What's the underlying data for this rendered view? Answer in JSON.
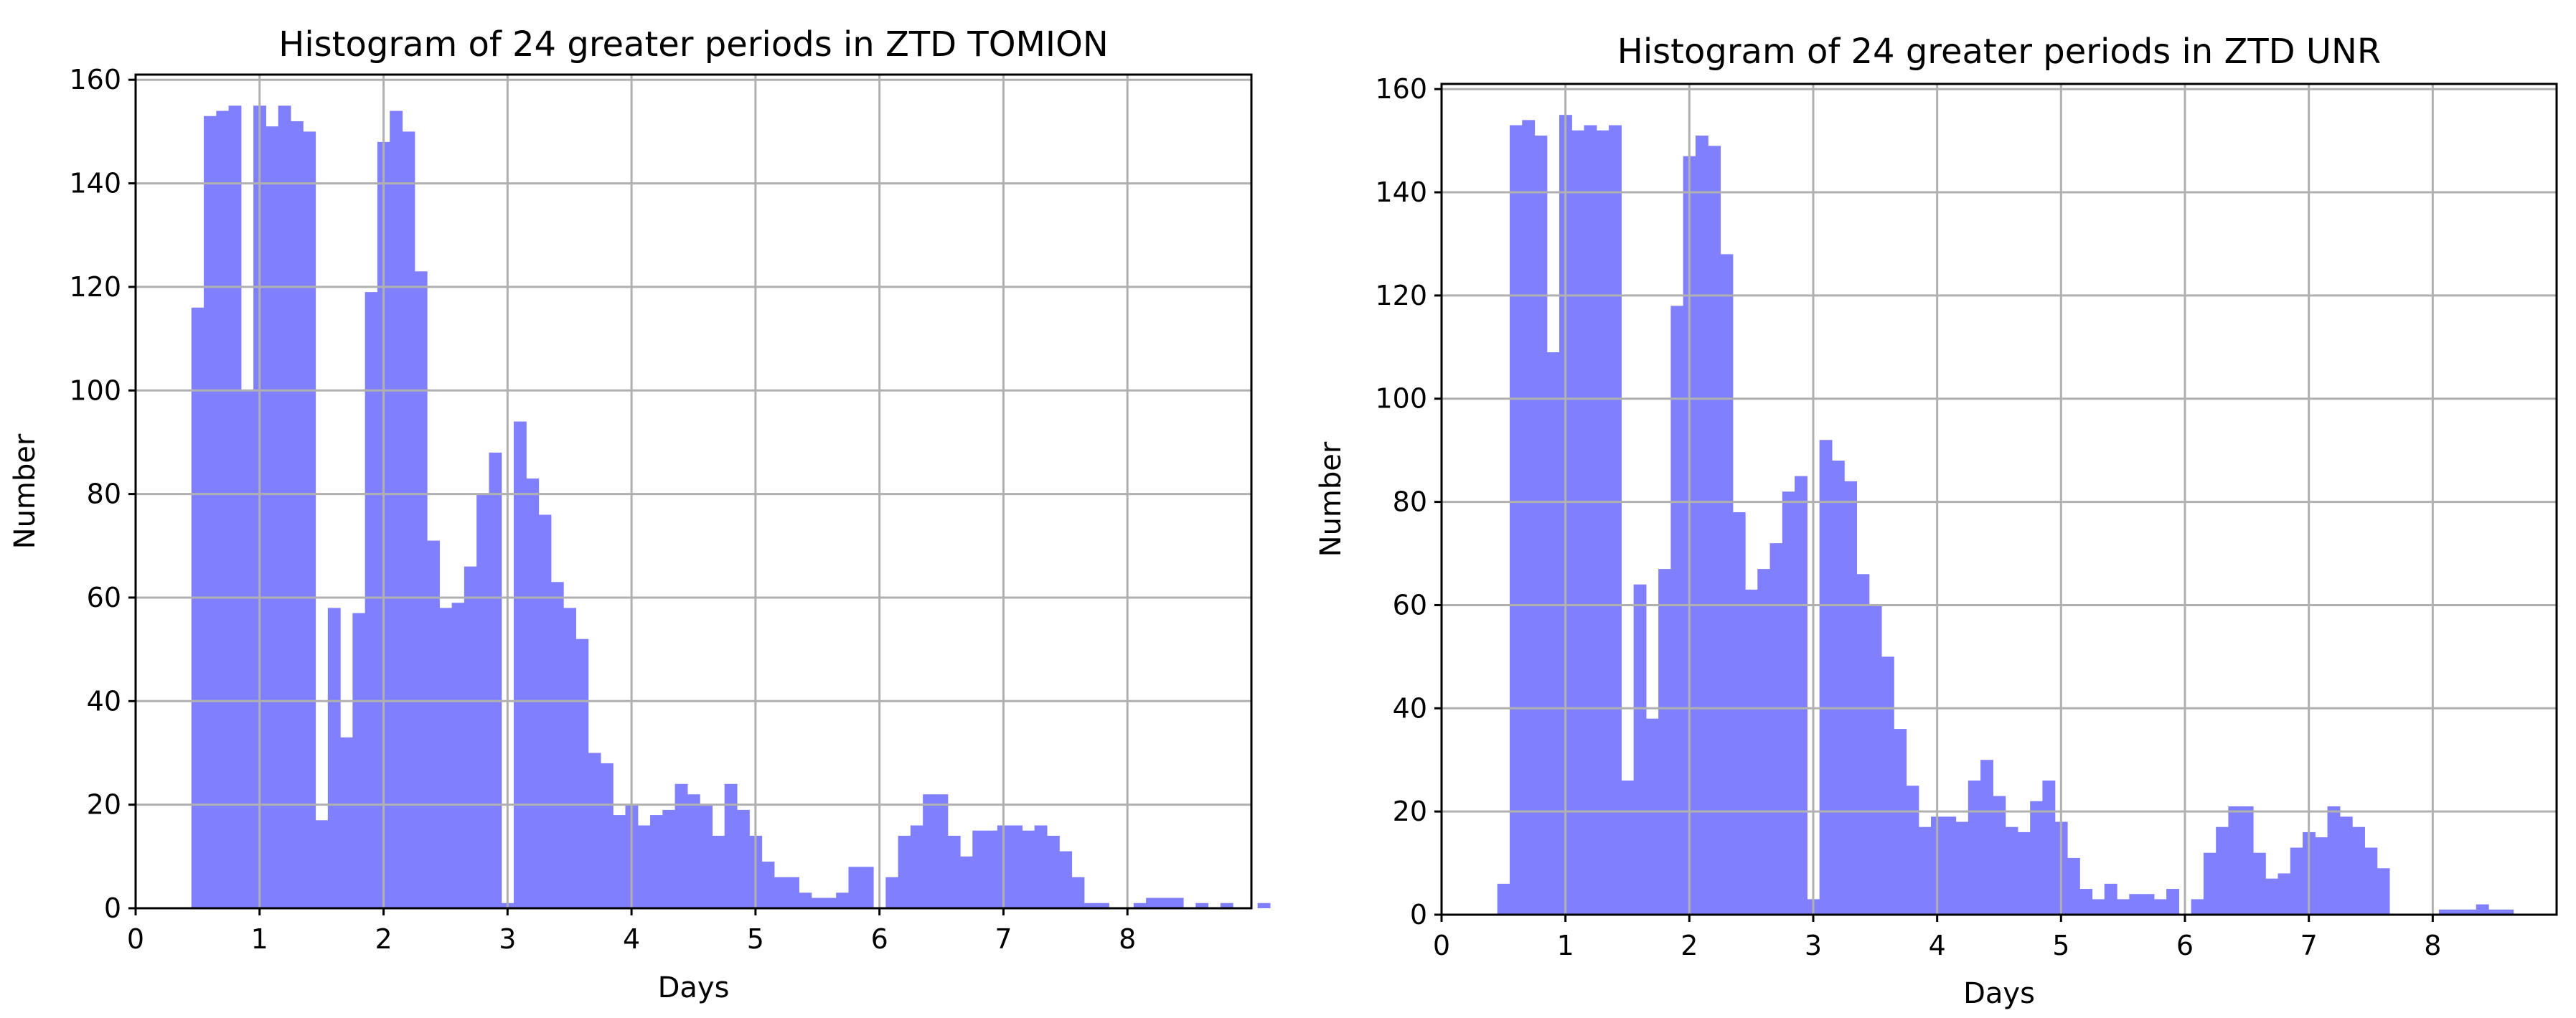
{
  "chart_data": [
    {
      "type": "bar",
      "title": "Histogram of 24 greater periods in ZTD TOMION",
      "xlabel": "Days",
      "ylabel": "Number",
      "xlim": [
        0,
        9
      ],
      "ylim": [
        0,
        161
      ],
      "x_ticks": [
        "0",
        "1",
        "2",
        "3",
        "4",
        "5",
        "6",
        "7",
        "8"
      ],
      "y_ticks": [
        "0",
        "20",
        "40",
        "60",
        "80",
        "100",
        "120",
        "140",
        "160"
      ],
      "grid": true,
      "color": "#8080ff",
      "bin_width": 0.1,
      "bin_start": 0.45,
      "values": [
        116,
        153,
        154,
        155,
        100,
        155,
        151,
        155,
        152,
        150,
        17,
        58,
        33,
        57,
        119,
        148,
        154,
        150,
        123,
        71,
        58,
        59,
        66,
        80,
        88,
        1,
        94,
        83,
        76,
        63,
        58,
        52,
        30,
        28,
        18,
        20,
        16,
        18,
        19,
        24,
        22,
        20,
        14,
        24,
        19,
        14,
        9,
        6,
        6,
        3,
        2,
        2,
        3,
        8,
        8,
        0,
        6,
        14,
        16,
        22,
        22,
        14,
        10,
        15,
        15,
        16,
        16,
        15,
        16,
        14,
        11,
        6,
        1,
        1,
        0,
        0,
        1,
        2,
        2,
        2,
        0,
        1,
        0,
        1,
        0,
        0,
        1
      ]
    },
    {
      "type": "bar",
      "title": "Histogram of 24 greater periods in ZTD UNR",
      "xlabel": "Days",
      "ylabel": "Number",
      "xlim": [
        0,
        9
      ],
      "ylim": [
        0,
        161
      ],
      "x_ticks": [
        "0",
        "1",
        "2",
        "3",
        "4",
        "5",
        "6",
        "7",
        "8"
      ],
      "y_ticks": [
        "0",
        "20",
        "40",
        "60",
        "80",
        "100",
        "120",
        "140",
        "160"
      ],
      "grid": true,
      "color": "#8080ff",
      "bin_width": 0.1,
      "bin_start": 0.45,
      "values": [
        6,
        153,
        154,
        151,
        109,
        155,
        152,
        153,
        152,
        153,
        26,
        64,
        38,
        67,
        118,
        147,
        151,
        149,
        128,
        78,
        63,
        67,
        72,
        82,
        85,
        3,
        92,
        88,
        84,
        66,
        60,
        50,
        36,
        25,
        17,
        19,
        19,
        18,
        26,
        30,
        23,
        17,
        16,
        22,
        26,
        18,
        11,
        5,
        3,
        6,
        3,
        4,
        4,
        3,
        5,
        0,
        3,
        12,
        17,
        21,
        21,
        12,
        7,
        8,
        13,
        16,
        15,
        21,
        19,
        17,
        13,
        9,
        0,
        0,
        0,
        0,
        1,
        1,
        1,
        2,
        1,
        1
      ]
    }
  ]
}
